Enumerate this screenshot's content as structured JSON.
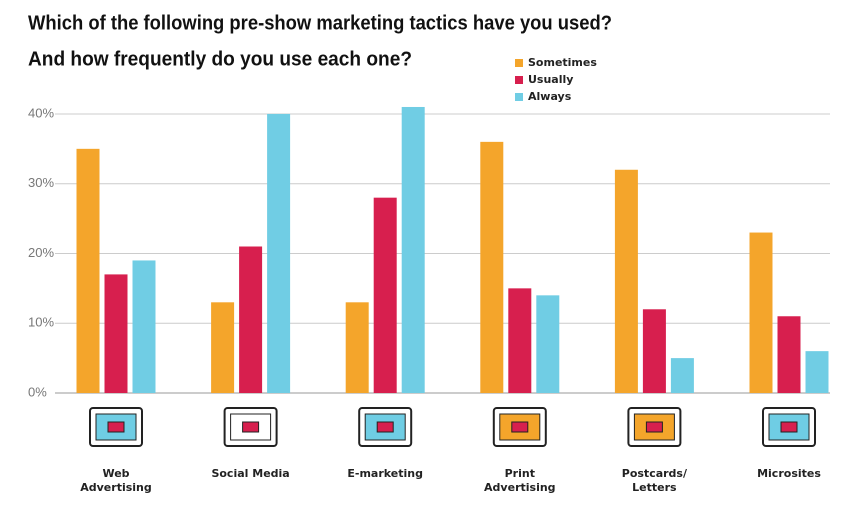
{
  "chart_data": {
    "type": "bar",
    "title": "Which of the following pre-show marketing tactics have you used?",
    "subtitle": "And how frequently do you use each one?",
    "categories": [
      "Web Advertising",
      "Social Media",
      "E-marketing",
      "Print Advertising",
      "Postcards/ Letters",
      "Microsites"
    ],
    "series": [
      {
        "name": "Sometimes",
        "color": "#f4a52b",
        "values": [
          35,
          13,
          13,
          36,
          32,
          23
        ]
      },
      {
        "name": "Usually",
        "color": "#d71f4e",
        "values": [
          17,
          21,
          28,
          15,
          12,
          11
        ]
      },
      {
        "name": "Always",
        "color": "#70cde4",
        "values": [
          19,
          40,
          41,
          14,
          5,
          6
        ]
      }
    ],
    "ylim": [
      0,
      42
    ],
    "yticks": [
      {
        "value": 0,
        "label": "0%"
      },
      {
        "value": 10,
        "label": "10%"
      },
      {
        "value": 20,
        "label": "20%"
      },
      {
        "value": 30,
        "label": "30%"
      },
      {
        "value": 40,
        "label": "40%"
      }
    ],
    "grid": true
  }
}
